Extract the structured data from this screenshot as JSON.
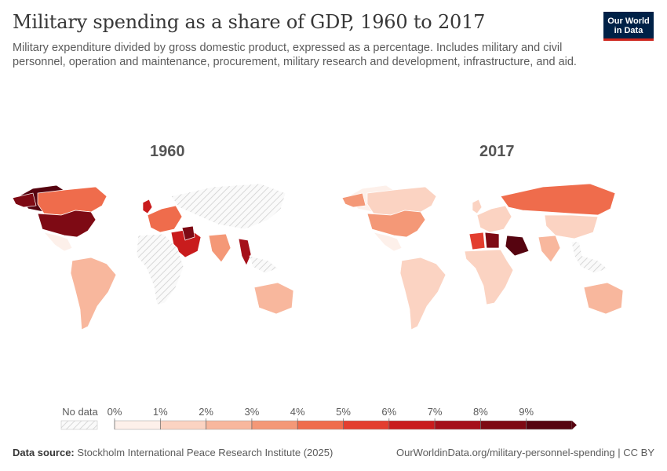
{
  "header": {
    "title": "Military spending as a share of GDP, 1960 to 2017",
    "subtitle": "Military expenditure divided by gross domestic product, expressed as a percentage. Includes military and civil personnel, operation and maintenance, procurement, military research and development, infrastructure, and aid."
  },
  "logo": {
    "line1": "Our World",
    "line2": "in Data"
  },
  "maps": [
    {
      "year_label": "1960"
    },
    {
      "year_label": "2017"
    }
  ],
  "legend": {
    "no_data_label": "No data",
    "bins": [
      "0%",
      "1%",
      "2%",
      "3%",
      "4%",
      "5%",
      "6%",
      "7%",
      "8%",
      "9%"
    ],
    "colors": [
      "#fdf0ea",
      "#fbd3c2",
      "#f8b79d",
      "#f49877",
      "#ef6c4c",
      "#e33e2f",
      "#c91c1d",
      "#a5101a",
      "#7e0a14",
      "#560410"
    ]
  },
  "chart_data": {
    "type": "choropleth",
    "metric": "Military spending as a share of GDP (%)",
    "panels": [
      {
        "year": "1960",
        "regions": [
          {
            "name": "United States",
            "value": 8.6
          },
          {
            "name": "Canada",
            "value": 4.2
          },
          {
            "name": "Greenland",
            "value": 9.0
          },
          {
            "name": "Mexico",
            "value": 0.6
          },
          {
            "name": "South America",
            "value": 2.5
          },
          {
            "name": "United Kingdom",
            "value": 6.3
          },
          {
            "name": "Western Europe",
            "value": 4.0
          },
          {
            "name": "Soviet Union / China",
            "value": null
          },
          {
            "name": "Middle East",
            "value": 6.0
          },
          {
            "name": "Iraq",
            "value": 8.0
          },
          {
            "name": "India",
            "value": 3.0
          },
          {
            "name": "Burma",
            "value": 7.0
          },
          {
            "name": "Africa",
            "value": null
          },
          {
            "name": "Australia",
            "value": 2.8
          }
        ]
      },
      {
        "year": "2017",
        "regions": [
          {
            "name": "United States",
            "value": 3.3
          },
          {
            "name": "Canada",
            "value": 1.3
          },
          {
            "name": "Greenland",
            "value": 0.5
          },
          {
            "name": "Mexico",
            "value": 0.5
          },
          {
            "name": "South America",
            "value": 1.4
          },
          {
            "name": "Russia",
            "value": 4.2
          },
          {
            "name": "Western Europe",
            "value": 1.5
          },
          {
            "name": "China",
            "value": 1.9
          },
          {
            "name": "Saudi Arabia",
            "value": 10.2
          },
          {
            "name": "Libya",
            "value": 8.5
          },
          {
            "name": "Algeria",
            "value": 5.9
          },
          {
            "name": "India",
            "value": 2.5
          },
          {
            "name": "Africa",
            "value": 1.5
          },
          {
            "name": "Australia",
            "value": 2.0
          }
        ]
      }
    ]
  },
  "footer": {
    "source_label": "Data source:",
    "source_text": "Stockholm International Peace Research Institute (2025)",
    "url": "OurWorldinData.org/military-personnel-spending | CC BY"
  }
}
